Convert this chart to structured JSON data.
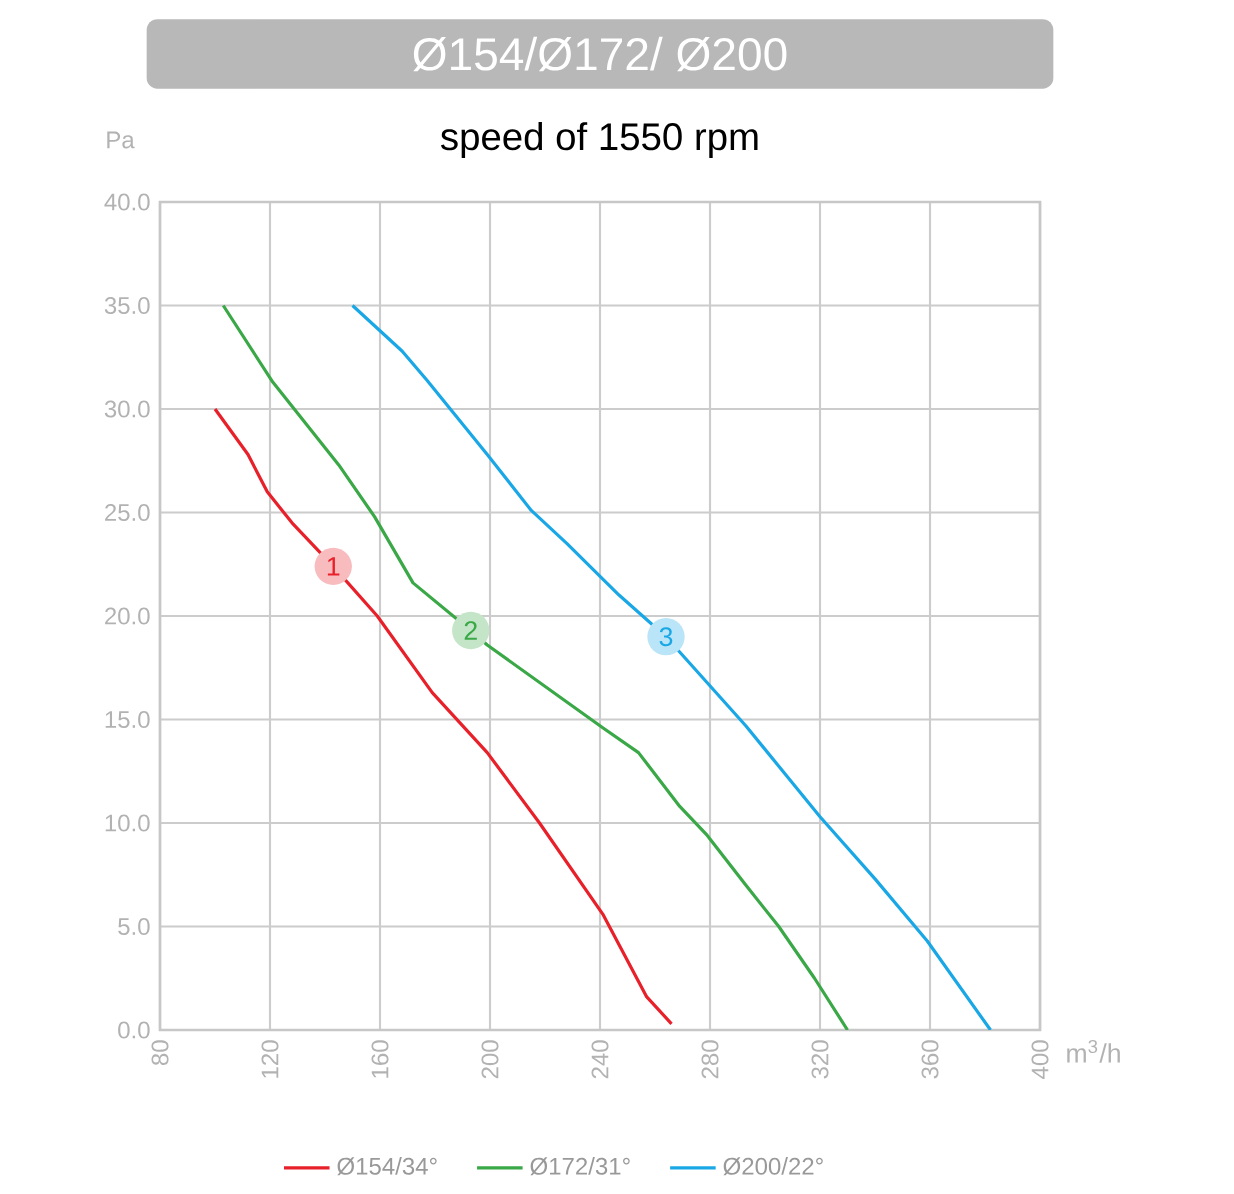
{
  "chart_data": {
    "type": "line",
    "title": "Ø154/Ø172/ Ø200",
    "subtitle": "speed of 1550 rpm",
    "xlabel": "m$^{3}$/h",
    "ylabel": "Pa",
    "xlim": [
      80,
      400
    ],
    "xticks": [
      80,
      120,
      160,
      200,
      240,
      280,
      320,
      360,
      400
    ],
    "ylim": [
      0,
      40
    ],
    "yticks": [
      {
        "value": 0,
        "label": "0.0"
      },
      {
        "value": 5,
        "label": "5.0"
      },
      {
        "value": 10,
        "label": "10.0"
      },
      {
        "value": 15,
        "label": "15.0"
      },
      {
        "value": 20,
        "label": "20.0"
      },
      {
        "value": 25,
        "label": "25.0"
      },
      {
        "value": 30,
        "label": "30.0"
      },
      {
        "value": 35,
        "label": "35.0"
      },
      {
        "value": 40,
        "label": "40.0"
      }
    ],
    "grid": true,
    "legend": "bottom",
    "marker": "none",
    "line_style": "solid",
    "series": [
      {
        "name": "Ø154/34°",
        "color": "#e8202a",
        "x": [
          100,
          112,
          119,
          128,
          143,
          159,
          179,
          199,
          218,
          241,
          257,
          266
        ],
        "values": [
          30,
          27.8,
          26,
          24.5,
          22.4,
          20,
          16.3,
          13.4,
          10,
          5.6,
          1.6,
          0.3
        ]
      },
      {
        "name": "Ø172/31°",
        "color": "#3aa847",
        "x": [
          103,
          121,
          145,
          158,
          172,
          193,
          199,
          241,
          254,
          269,
          279,
          293,
          305,
          318,
          330
        ],
        "values": [
          35,
          31.3,
          27.3,
          24.8,
          21.6,
          19.3,
          18.6,
          14.6,
          13.4,
          10.8,
          9.4,
          7,
          5,
          2.5,
          0
        ]
      },
      {
        "name": "Ø200/22°",
        "color": "#1aa7e6",
        "x": [
          150,
          168,
          177,
          199,
          215,
          228,
          247,
          264,
          293,
          320,
          340,
          359,
          382
        ],
        "values": [
          35,
          32.8,
          31.4,
          27.8,
          25.1,
          23.5,
          21,
          19,
          14.7,
          10.3,
          7.3,
          4.3,
          0
        ]
      }
    ],
    "annotations": [
      {
        "text": "1",
        "x": 143,
        "y": 22.4
      },
      {
        "text": "2",
        "x": 193,
        "y": 19.3
      },
      {
        "text": "3",
        "x": 264,
        "y": 19
      }
    ]
  }
}
